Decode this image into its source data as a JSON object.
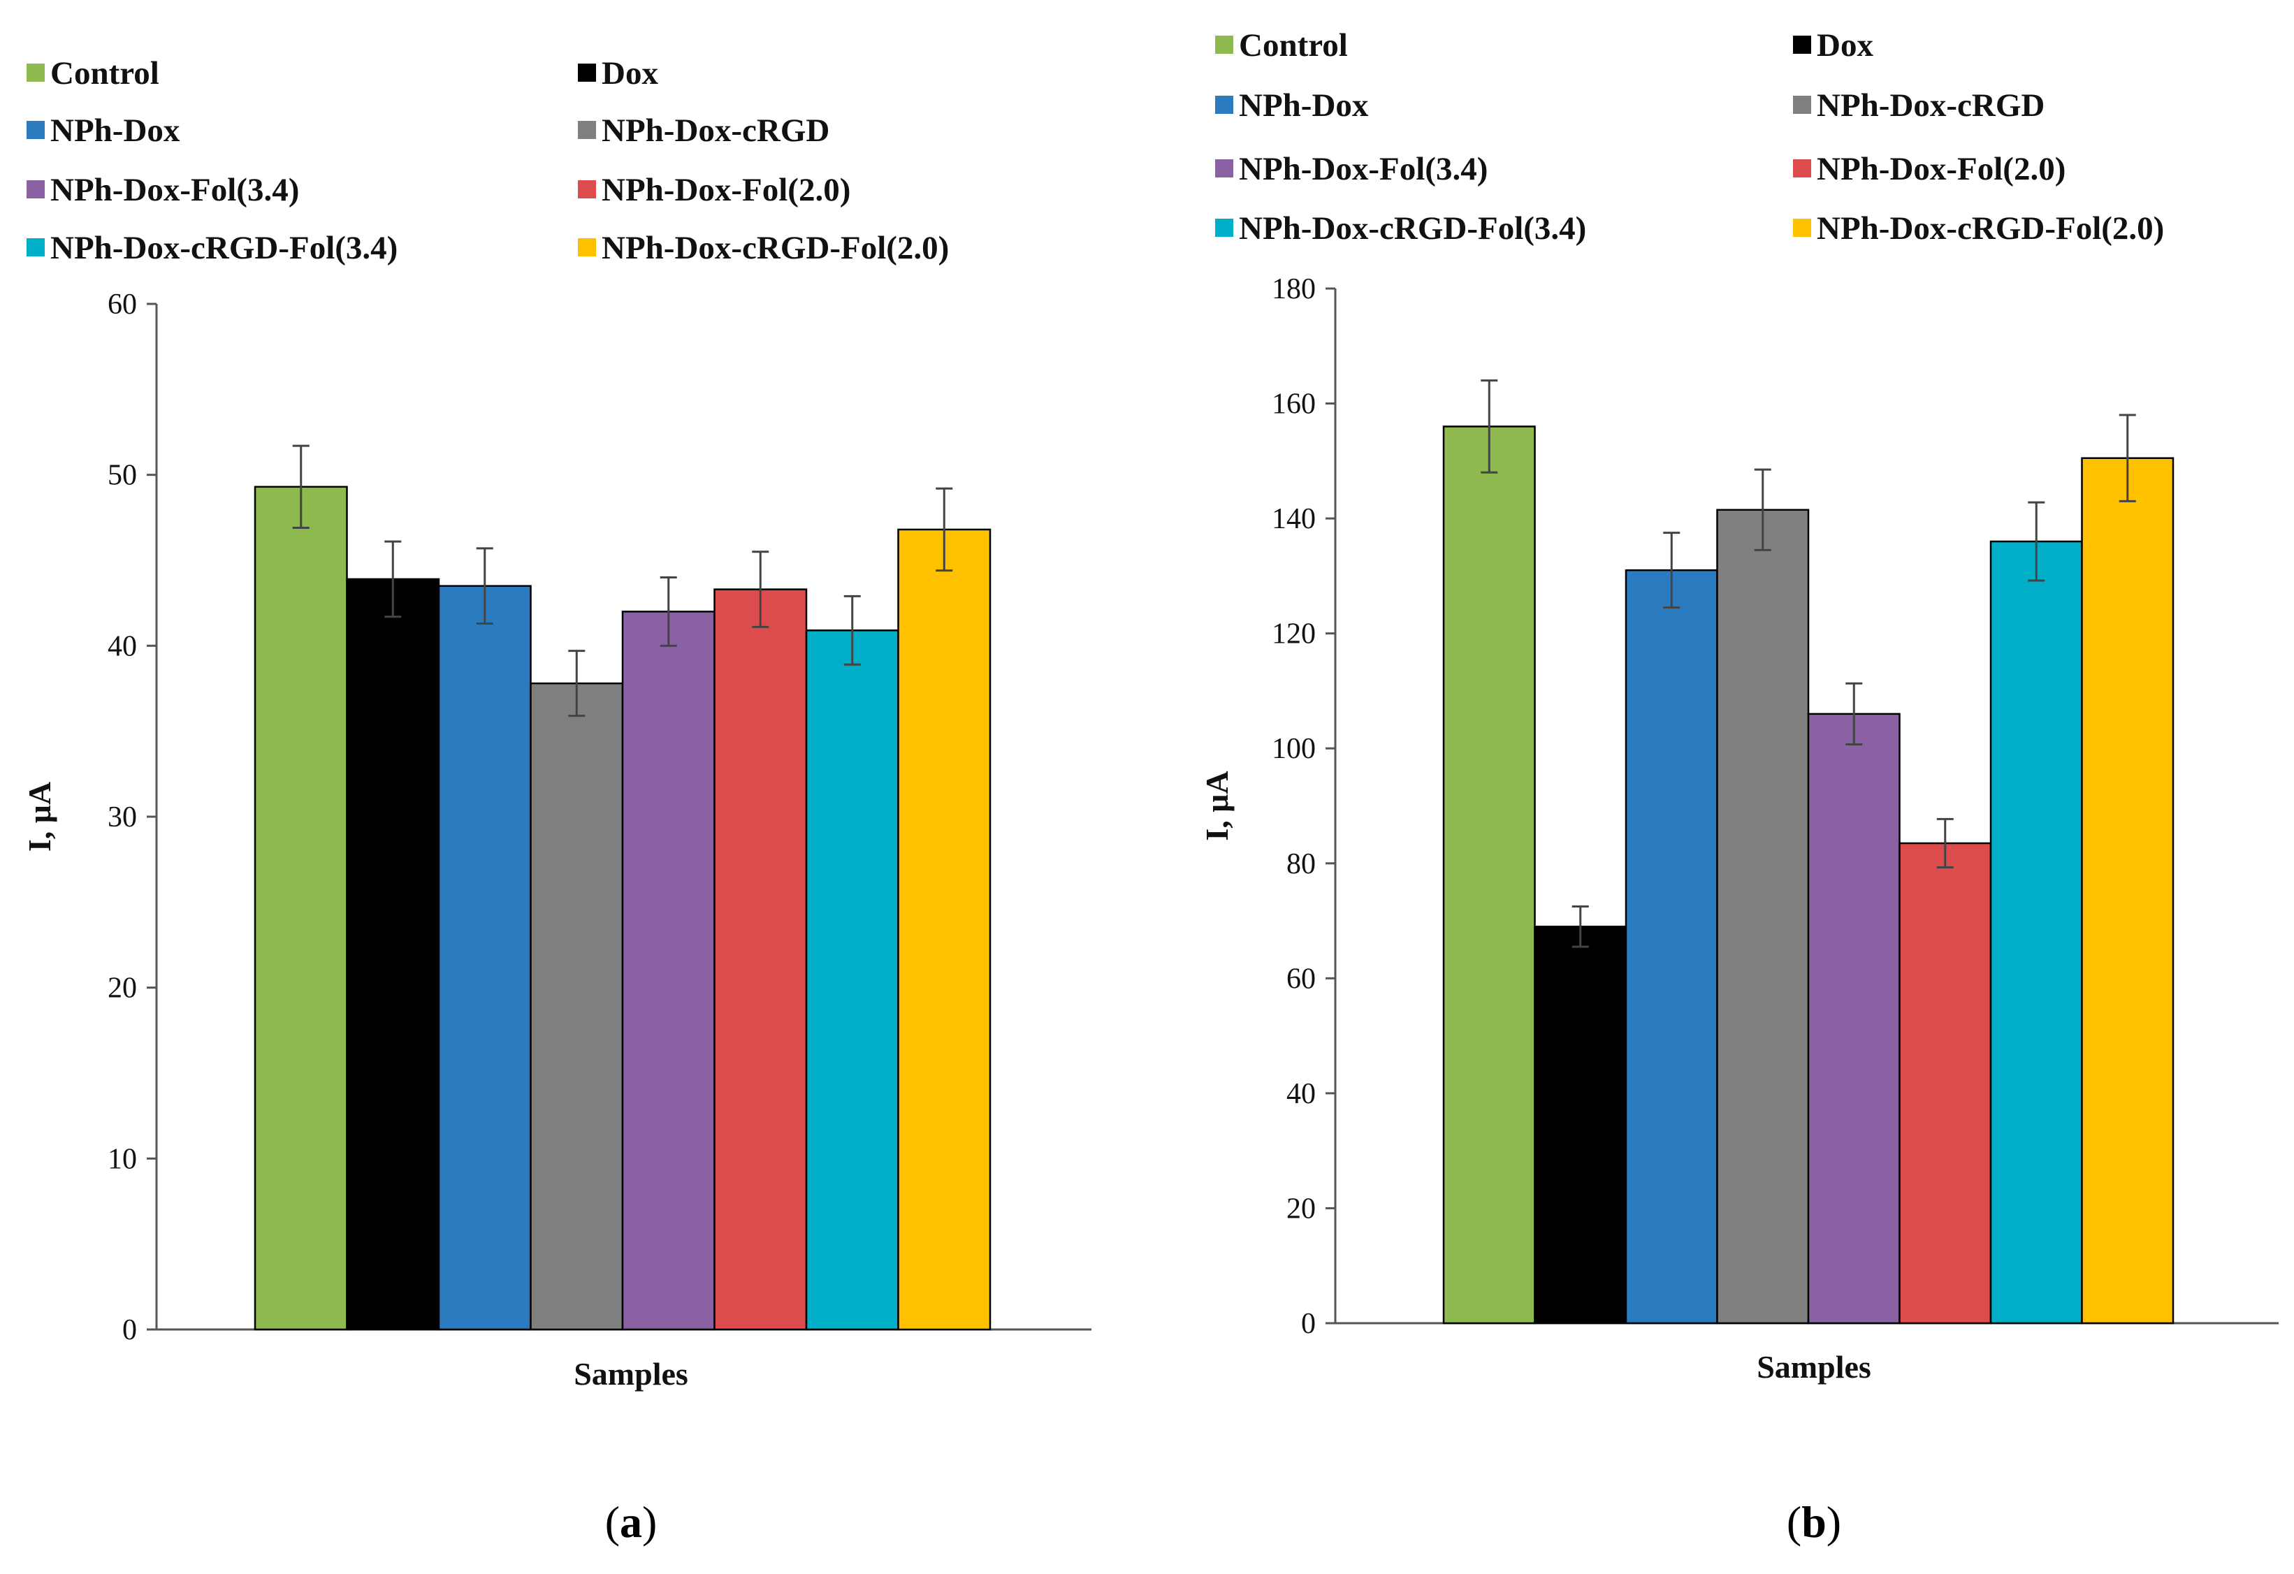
{
  "chart_data": [
    {
      "type": "bar",
      "panel_label": "(a)",
      "panel_letter": "a",
      "xlabel": "Samples",
      "ylabel": "I, μA",
      "ylim": [
        0,
        60
      ],
      "yticks": [
        0,
        10,
        20,
        30,
        40,
        50,
        60
      ],
      "grid": false,
      "legend_position": "top",
      "series": [
        {
          "name": "Control",
          "color": "#8db94e",
          "value": 49.3,
          "error": 2.4
        },
        {
          "name": "Dox",
          "color": "#000000",
          "value": 43.9,
          "error": 2.2
        },
        {
          "name": "NPh-Dox",
          "color": "#2a7bbf",
          "value": 43.5,
          "error": 2.2
        },
        {
          "name": "NPh-Dox-cRGD",
          "color": "#808080",
          "value": 37.8,
          "error": 1.9
        },
        {
          "name": "NPh-Dox-Fol(3.4)",
          "color": "#8a62a4",
          "value": 42.0,
          "error": 2.0
        },
        {
          "name": "NPh-Dox-Fol(2.0)",
          "color": "#dc4c4c",
          "value": 43.3,
          "error": 2.2
        },
        {
          "name": "NPh-Dox-cRGD-Fol(3.4)",
          "color": "#00aec8",
          "value": 40.9,
          "error": 2.0
        },
        {
          "name": "NPh-Dox-cRGD-Fol(2.0)",
          "color": "#ffc000",
          "value": 46.8,
          "error": 2.4
        }
      ]
    },
    {
      "type": "bar",
      "panel_label": "(b)",
      "panel_letter": "b",
      "xlabel": "Samples",
      "ylabel": "I, μA",
      "ylim": [
        0,
        180
      ],
      "yticks": [
        0,
        20,
        40,
        60,
        80,
        100,
        120,
        140,
        160,
        180
      ],
      "grid": false,
      "legend_position": "top",
      "series": [
        {
          "name": "Control",
          "color": "#8db94e",
          "value": 156,
          "error": 8
        },
        {
          "name": "Dox",
          "color": "#000000",
          "value": 69,
          "error": 3.5
        },
        {
          "name": "NPh-Dox",
          "color": "#2a7bbf",
          "value": 131,
          "error": 6.5
        },
        {
          "name": "NPh-Dox-cRGD",
          "color": "#808080",
          "value": 141.5,
          "error": 7
        },
        {
          "name": "NPh-Dox-Fol(3.4)",
          "color": "#8a62a4",
          "value": 106,
          "error": 5.3
        },
        {
          "name": "NPh-Dox-Fol(2.0)",
          "color": "#dc4c4c",
          "value": 83.5,
          "error": 4.2
        },
        {
          "name": "NPh-Dox-cRGD-Fol(3.4)",
          "color": "#00aec8",
          "value": 136,
          "error": 6.8
        },
        {
          "name": "NPh-Dox-cRGD-Fol(2.0)",
          "color": "#ffc000",
          "value": 150.5,
          "error": 7.5
        }
      ]
    }
  ]
}
